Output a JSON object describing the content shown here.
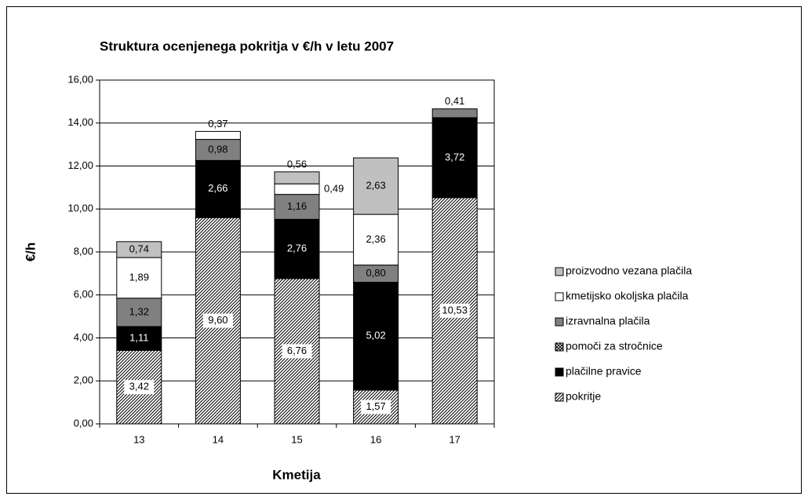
{
  "chart_data": {
    "type": "stacked_bar",
    "title": "Struktura ocenjenega pokritja v €/h v letu 2007",
    "x_label": "Kmetija",
    "y_label": "€/h",
    "categories": [
      "13",
      "14",
      "15",
      "16",
      "17"
    ],
    "ylim": [
      0,
      16
    ],
    "yticks": [
      {
        "value": 0,
        "label": "0,00"
      },
      {
        "value": 2,
        "label": "2,00"
      },
      {
        "value": 4,
        "label": "4,00"
      },
      {
        "value": 6,
        "label": "6,00"
      },
      {
        "value": 8,
        "label": "8,00"
      },
      {
        "value": 10,
        "label": "10,00"
      },
      {
        "value": 12,
        "label": "12,00"
      },
      {
        "value": 14,
        "label": "14,00"
      },
      {
        "value": 16,
        "label": "16,00"
      }
    ],
    "grid": true,
    "legend": "right",
    "series": [
      {
        "name": "pokritje",
        "color": "#ffffff",
        "pattern": "diagonal",
        "values": [
          3.42,
          9.6,
          6.76,
          1.57,
          10.53
        ],
        "value_labels": [
          "3,42",
          "9,60",
          "6,76",
          "1,57",
          "10,53"
        ]
      },
      {
        "name": "plačilne pravice",
        "color": "#000000",
        "values": [
          1.11,
          2.66,
          2.76,
          5.02,
          3.72
        ],
        "value_labels": [
          "1,11",
          "2,66",
          "2,76",
          "5,02",
          "3,72"
        ]
      },
      {
        "name": "pomoči za stročnice",
        "color": "#ffffff",
        "pattern": "cross",
        "values": [
          null,
          null,
          null,
          null,
          null
        ],
        "value_labels": [
          null,
          null,
          null,
          null,
          null
        ]
      },
      {
        "name": "izravnalna plačila",
        "color": "#808080",
        "values": [
          1.32,
          0.98,
          1.16,
          0.8,
          0.41
        ],
        "value_labels": [
          "1,32",
          "0,98",
          "1,16",
          "0,80",
          "0,41"
        ]
      },
      {
        "name": "kmetijsko okoljska plačila",
        "color": "#ffffff",
        "values": [
          1.89,
          0.37,
          0.49,
          2.36,
          null
        ],
        "value_labels": [
          "1,89",
          "0,37",
          "0,49",
          "2,36",
          null
        ]
      },
      {
        "name": "proizvodno vezana plačila",
        "color": "#c0c0c0",
        "values": [
          0.74,
          null,
          0.56,
          2.63,
          null
        ],
        "value_labels": [
          "0,74",
          null,
          "0,56",
          "2,63",
          null
        ]
      }
    ]
  }
}
